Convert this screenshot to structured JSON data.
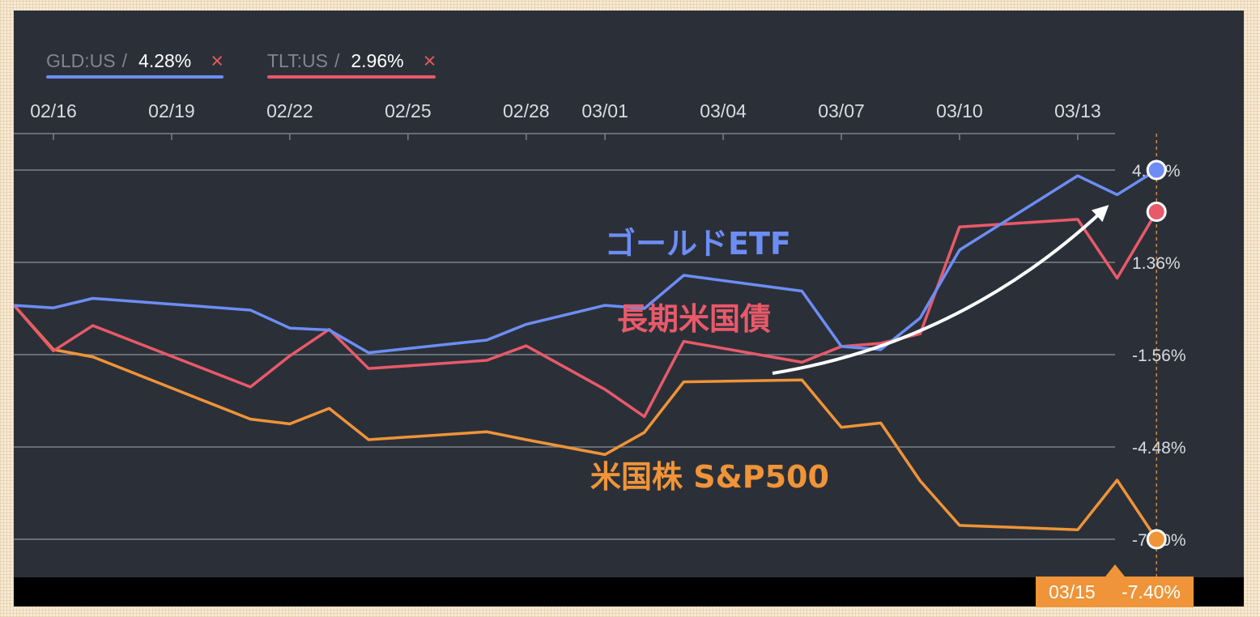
{
  "legend": [
    {
      "ticker": "GLD:US",
      "slash": "/",
      "value": "4.28%",
      "remove": "×",
      "color": "#6d8df5"
    },
    {
      "ticker": "TLT:US",
      "slash": "/",
      "value": "2.96%",
      "remove": "×",
      "color": "#e9596a"
    }
  ],
  "chart_data": {
    "type": "line",
    "x_ticks": [
      "02/16",
      "02/19",
      "02/22",
      "02/25",
      "02/28",
      "03/01",
      "03/04",
      "03/07",
      "03/10",
      "03/13"
    ],
    "y_ticks": [
      "4.28%",
      "1.36%",
      "-1.56%",
      "-4.48%",
      "-7.40%"
    ],
    "ylim": [
      -8.5,
      5.3
    ],
    "grid": true,
    "series": [
      {
        "name": "ゴールドETF",
        "color": "#6d8df5",
        "points": [
          [
            "02/15",
            0.0
          ],
          [
            "02/16",
            -0.08
          ],
          [
            "02/17",
            0.22
          ],
          [
            "02/21",
            -0.15
          ],
          [
            "02/22",
            -0.72
          ],
          [
            "02/23",
            -0.78
          ],
          [
            "02/24",
            -1.5
          ],
          [
            "02/27",
            -1.1
          ],
          [
            "02/28",
            -0.6
          ],
          [
            "03/01",
            0.0
          ],
          [
            "03/02",
            -0.1
          ],
          [
            "03/03",
            0.95
          ],
          [
            "03/06",
            0.45
          ],
          [
            "03/07",
            -1.3
          ],
          [
            "03/08",
            -1.4
          ],
          [
            "03/09",
            -0.4
          ],
          [
            "03/10",
            1.75
          ],
          [
            "03/13",
            4.1
          ],
          [
            "03/14",
            3.5
          ],
          [
            "03/15",
            4.28
          ]
        ]
      },
      {
        "name": "長期米国債",
        "color": "#e9596a",
        "points": [
          [
            "02/15",
            0.0
          ],
          [
            "02/16",
            -1.44
          ],
          [
            "02/17",
            -0.64
          ],
          [
            "02/21",
            -2.58
          ],
          [
            "02/22",
            -1.6
          ],
          [
            "02/23",
            -0.76
          ],
          [
            "02/24",
            -2.0
          ],
          [
            "02/27",
            -1.74
          ],
          [
            "02/28",
            -1.28
          ],
          [
            "03/01",
            -2.66
          ],
          [
            "03/02",
            -3.52
          ],
          [
            "03/03",
            -1.14
          ],
          [
            "03/06",
            -1.8
          ],
          [
            "03/07",
            -1.3
          ],
          [
            "03/08",
            -1.2
          ],
          [
            "03/09",
            -0.9
          ],
          [
            "03/10",
            2.48
          ],
          [
            "03/13",
            2.72
          ],
          [
            "03/14",
            0.86
          ],
          [
            "03/15",
            2.96
          ]
        ]
      },
      {
        "name": "米国株 S&P500",
        "color": "#ef9438",
        "points": [
          [
            "02/15",
            0.0
          ],
          [
            "02/16",
            -1.4
          ],
          [
            "02/17",
            -1.63
          ],
          [
            "02/21",
            -3.6
          ],
          [
            "02/22",
            -3.75
          ],
          [
            "02/23",
            -3.26
          ],
          [
            "02/24",
            -4.25
          ],
          [
            "02/27",
            -4.0
          ],
          [
            "02/28",
            -4.25
          ],
          [
            "03/01",
            -4.72
          ],
          [
            "03/02",
            -4.02
          ],
          [
            "03/03",
            -2.42
          ],
          [
            "03/06",
            -2.36
          ],
          [
            "03/07",
            -3.86
          ],
          [
            "03/08",
            -3.72
          ],
          [
            "03/09",
            -5.55
          ],
          [
            "03/10",
            -6.96
          ],
          [
            "03/13",
            -7.1
          ],
          [
            "03/14",
            -5.53
          ],
          [
            "03/15",
            -7.4
          ]
        ]
      }
    ]
  },
  "annotations": {
    "gold": "ゴールドETF",
    "bonds": "長期米国債",
    "stocks": "米国株 S&P500"
  },
  "crosshair": {
    "date": "03/15",
    "value": "-7.40%",
    "color": "#ef9438"
  }
}
